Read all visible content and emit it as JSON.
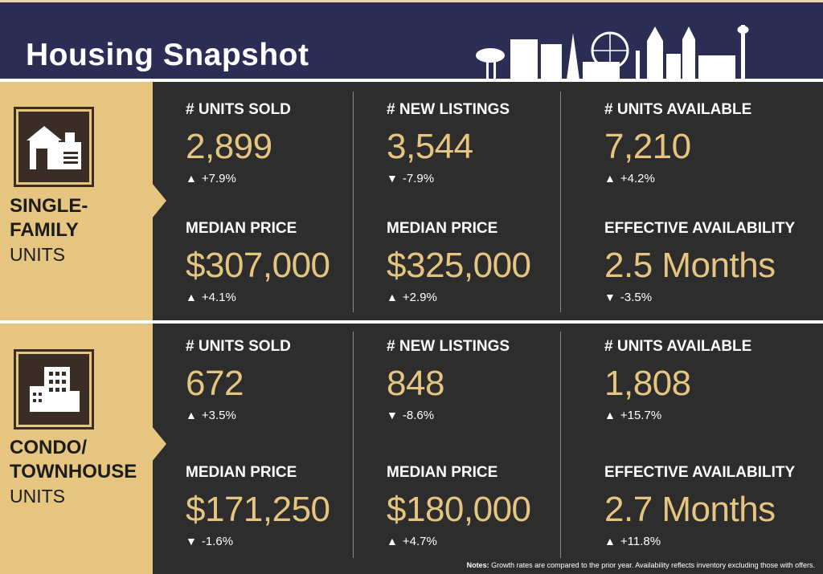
{
  "header": {
    "title": "Housing Snapshot"
  },
  "colors": {
    "navy": "#2c2d55",
    "gold": "#e5c57f",
    "panel": "#2d2d2d",
    "white": "#ffffff"
  },
  "sections": [
    {
      "icon": "house-icon",
      "label_line1": "SINGLE-",
      "label_line2": "FAMILY",
      "label_line3": "UNITS",
      "metrics": {
        "units_sold": {
          "title": "# UNITS SOLD",
          "value": "2,899",
          "arrow": "▲",
          "change": "+7.9%"
        },
        "new_listings": {
          "title": "# NEW LISTINGS",
          "value": "3,544",
          "arrow": "▼",
          "change": "-7.9%"
        },
        "units_available": {
          "title": "# UNITS AVAILABLE",
          "value": "7,210",
          "arrow": "▲",
          "change": "+4.2%"
        },
        "median_price_sold": {
          "title": "MEDIAN PRICE",
          "value": "$307,000",
          "arrow": "▲",
          "change": "+4.1%"
        },
        "median_price_listings": {
          "title": "MEDIAN PRICE",
          "value": "$325,000",
          "arrow": "▲",
          "change": "+2.9%"
        },
        "effective_availability": {
          "title": "EFFECTIVE AVAILABILITY",
          "value": "2.5 Months",
          "arrow": "▼",
          "change": "-3.5%"
        }
      }
    },
    {
      "icon": "building-icon",
      "label_line1": "CONDO/",
      "label_line2": "TOWNHOUSE",
      "label_line3": "UNITS",
      "metrics": {
        "units_sold": {
          "title": "# UNITS SOLD",
          "value": "672",
          "arrow": "▲",
          "change": "+3.5%"
        },
        "new_listings": {
          "title": "# NEW LISTINGS",
          "value": "848",
          "arrow": "▼",
          "change": "-8.6%"
        },
        "units_available": {
          "title": "# UNITS AVAILABLE",
          "value": "1,808",
          "arrow": "▲",
          "change": "+15.7%"
        },
        "median_price_sold": {
          "title": "MEDIAN PRICE",
          "value": "$171,250",
          "arrow": "▼",
          "change": "-1.6%"
        },
        "median_price_listings": {
          "title": "MEDIAN PRICE",
          "value": "$180,000",
          "arrow": "▲",
          "change": "+4.7%"
        },
        "effective_availability": {
          "title": "EFFECTIVE AVAILABILITY",
          "value": "2.7 Months",
          "arrow": "▲",
          "change": "+11.8%"
        }
      }
    }
  ],
  "notes": {
    "label": "Notes:",
    "text": " Growth rates are compared to the prior year. Availability reflects inventory excluding those with offers."
  }
}
